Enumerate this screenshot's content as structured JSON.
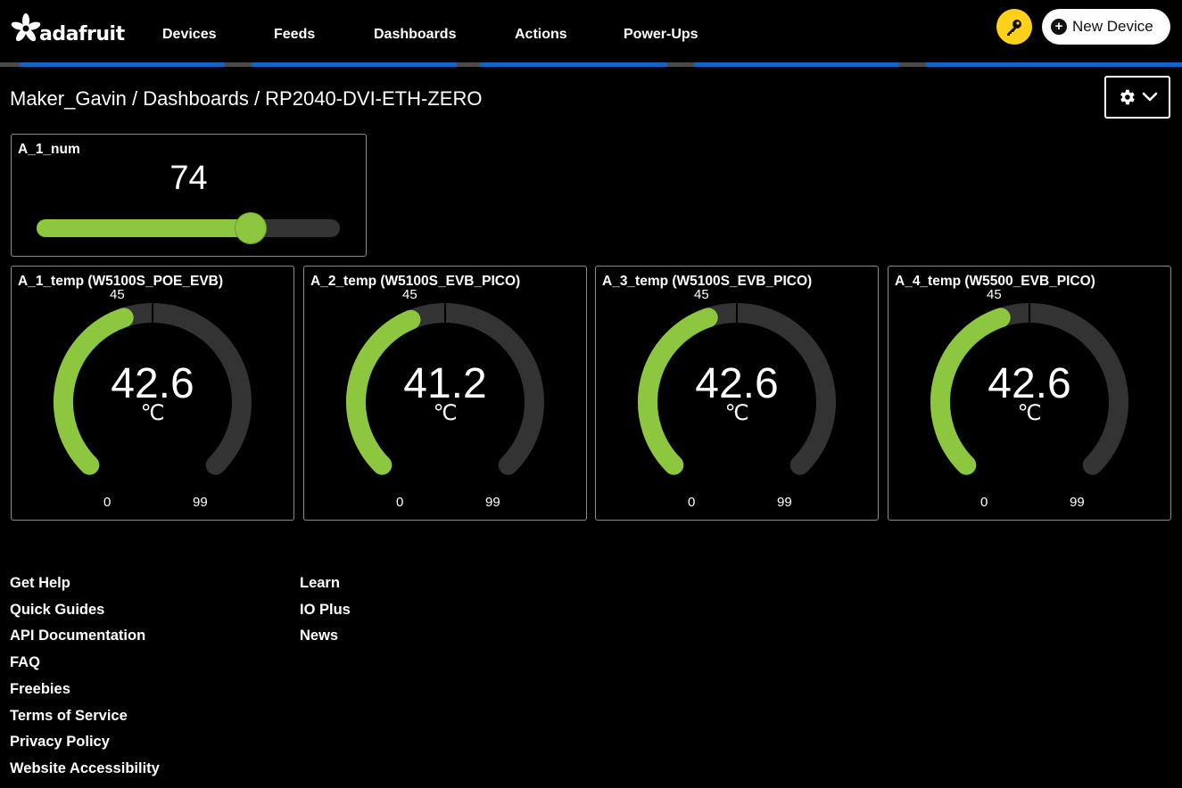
{
  "header": {
    "logo_text": "adafruit",
    "nav": [
      "Devices",
      "Feeds",
      "Dashboards",
      "Actions",
      "Power-Ups"
    ],
    "new_device_label": "New Device",
    "colors": {
      "key_button": "#ffd11a",
      "stripe_blue": "#1565c0",
      "stripe_gray": "#4a4a4a"
    }
  },
  "breadcrumb": {
    "user": "Maker_Gavin",
    "section": "Dashboards",
    "dashboard": "RP2040-DVI-ETH-ZERO",
    "separator": " / "
  },
  "slider_block": {
    "title": "A_1_num",
    "value": "74",
    "min": 0,
    "max": 100,
    "level": 74,
    "color": "#8dc63f"
  },
  "gauges": [
    {
      "title": "A_1_temp (W5100S_POE_EVB)",
      "value": "42.6",
      "unit": "℃",
      "min_label": "0",
      "max_label": "99",
      "mark_label": "45",
      "min": 0,
      "max": 99,
      "level": 42.6
    },
    {
      "title": "A_2_temp (W5100S_EVB_PICO)",
      "value": "41.2",
      "unit": "℃",
      "min_label": "0",
      "max_label": "99",
      "mark_label": "45",
      "min": 0,
      "max": 99,
      "level": 41.2
    },
    {
      "title": "A_3_temp (W5100S_EVB_PICO)",
      "value": "42.6",
      "unit": "℃",
      "min_label": "0",
      "max_label": "99",
      "mark_label": "45",
      "min": 0,
      "max": 99,
      "level": 42.6
    },
    {
      "title": "A_4_temp (W5500_EVB_PICO)",
      "value": "42.6",
      "unit": "℃",
      "min_label": "0",
      "max_label": "99",
      "mark_label": "45",
      "min": 0,
      "max": 99,
      "level": 42.6
    }
  ],
  "gauge_colors": {
    "fill": "#8dc63f",
    "track": "#333333"
  },
  "footer": {
    "col1": [
      "Get Help",
      "Quick Guides",
      "API Documentation",
      "FAQ",
      "Freebies",
      "Terms of Service",
      "Privacy Policy",
      "Website Accessibility"
    ],
    "col2": [
      "Learn",
      "IO Plus",
      "News"
    ]
  }
}
